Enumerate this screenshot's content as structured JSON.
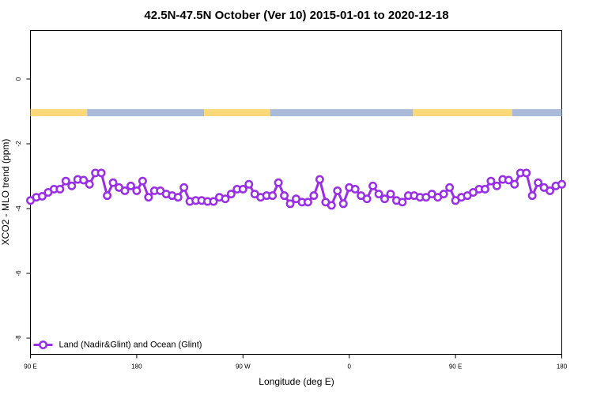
{
  "chart_data": {
    "type": "line",
    "title": "42.5N-47.5N October (Ver 10)   2015-01-01 to 2020-12-18",
    "x_label": "Longitude (deg E)",
    "y_label": "XCO2 - MLO trend (ppm)",
    "xlim": [
      90,
      540
    ],
    "ylim": [
      -8.5,
      1.5
    ],
    "xticks": [
      {
        "value": 90,
        "label": "90 E"
      },
      180,
      {
        "value": 270,
        "label": "90 W"
      },
      {
        "value": 360,
        "label": "0"
      },
      {
        "value": 450,
        "label": "90 E"
      },
      {
        "value": 540,
        "label": "180"
      }
    ],
    "yticks": [
      0,
      -2,
      -4,
      -6,
      -8
    ],
    "grid": false,
    "legend_position": "bottom-left",
    "strip": {
      "ylim": [
        -0.93,
        -1.15
      ],
      "segments": [
        {
          "from": 90,
          "to": 138,
          "color": "#fbd97a"
        },
        {
          "from": 138,
          "to": 237,
          "color": "#a9bbd9"
        },
        {
          "from": 237,
          "to": 293,
          "color": "#fbd97a"
        },
        {
          "from": 293,
          "to": 414,
          "color": "#a9bbd9"
        },
        {
          "from": 414,
          "to": 498,
          "color": "#fbd97a"
        },
        {
          "from": 498,
          "to": 540,
          "color": "#a9bbd9"
        }
      ]
    },
    "x": [
      90,
      95,
      100,
      105,
      110,
      115,
      120,
      125,
      130,
      135,
      140,
      145,
      150,
      155,
      160,
      165,
      170,
      175,
      180,
      185,
      190,
      195,
      200,
      205,
      210,
      215,
      220,
      225,
      230,
      235,
      240,
      245,
      250,
      255,
      260,
      265,
      270,
      275,
      280,
      285,
      290,
      295,
      300,
      305,
      310,
      315,
      320,
      325,
      330,
      335,
      340,
      345,
      350,
      355,
      360,
      365,
      370,
      375,
      380,
      385,
      390,
      395,
      400,
      405,
      410,
      415,
      420,
      425,
      430,
      435,
      440,
      445,
      450,
      455,
      460,
      465,
      470,
      475,
      480,
      485,
      490,
      495,
      500,
      505,
      510,
      515,
      520,
      525,
      530,
      535,
      540
    ],
    "series": [
      {
        "name": "Land (Nadir&Glint) and Ocean (Glint)",
        "color": "#9a2ee6",
        "values": [
          -3.75,
          -3.65,
          -3.62,
          -3.5,
          -3.4,
          -3.4,
          -3.15,
          -3.3,
          -3.1,
          -3.12,
          -3.25,
          -2.9,
          -2.9,
          -3.6,
          -3.2,
          -3.35,
          -3.45,
          -3.3,
          -3.45,
          -3.15,
          -3.65,
          -3.45,
          -3.45,
          -3.55,
          -3.6,
          -3.65,
          -3.35,
          -3.78,
          -3.75,
          -3.75,
          -3.78,
          -3.78,
          -3.65,
          -3.7,
          -3.55,
          -3.4,
          -3.4,
          -3.25,
          -3.55,
          -3.65,
          -3.6,
          -3.6,
          -3.2,
          -3.6,
          -3.85,
          -3.7,
          -3.8,
          -3.8,
          -3.6,
          -3.1,
          -3.8,
          -3.9,
          -3.45,
          -3.85,
          -3.35,
          -3.4,
          -3.6,
          -3.7,
          -3.3,
          -3.55,
          -3.7,
          -3.55,
          -3.75,
          -3.8,
          -3.6,
          -3.6,
          -3.65,
          -3.65,
          -3.55,
          -3.65,
          -3.55,
          -3.35,
          -3.75,
          -3.65,
          -3.6,
          -3.5,
          -3.4,
          -3.4,
          -3.15,
          -3.3,
          -3.1,
          -3.12,
          -3.25,
          -2.9,
          -2.9,
          -3.6,
          -3.2,
          -3.35,
          -3.45,
          -3.3,
          -3.25
        ]
      }
    ]
  }
}
